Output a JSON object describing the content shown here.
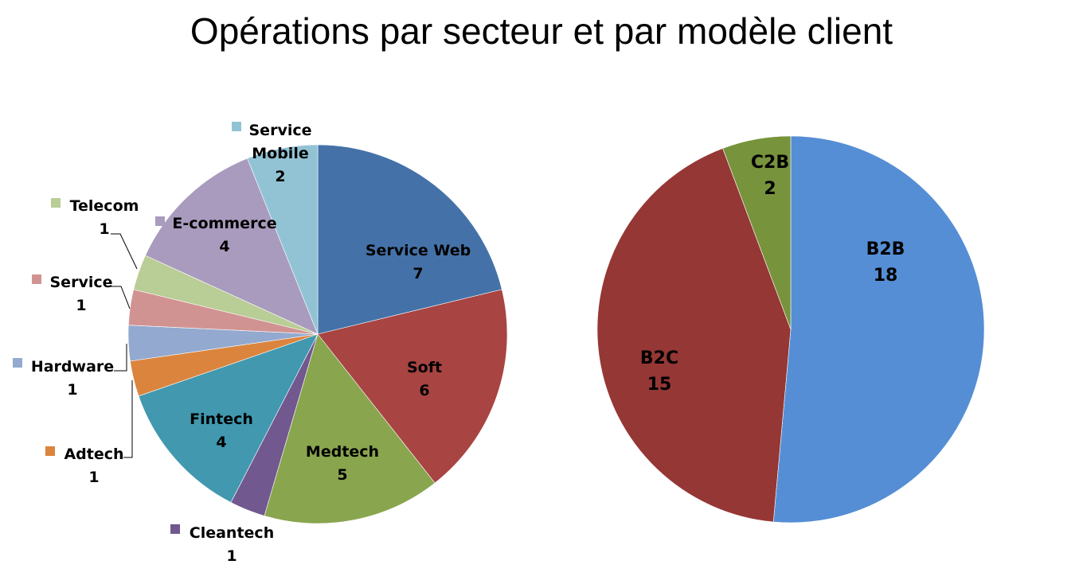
{
  "title": "Opérations par secteur et par modèle client",
  "chart_data": [
    {
      "type": "pie",
      "title": "",
      "categories": [
        "Service Web",
        "Soft",
        "Medtech",
        "Cleantech",
        "Fintech",
        "Adtech",
        "Hardware",
        "Service",
        "Telecom",
        "E-commerce",
        "Service Mobile"
      ],
      "values": [
        7,
        6,
        5,
        1,
        4,
        1,
        1,
        1,
        1,
        4,
        2
      ],
      "colors": [
        "#4472a8",
        "#a84442",
        "#89a54e",
        "#71588f",
        "#4198af",
        "#db843d",
        "#93a9cf",
        "#d19392",
        "#b9cd96",
        "#a99bbd",
        "#92c3d4"
      ],
      "labels": [
        {
          "name": "Service Web",
          "value": "7"
        },
        {
          "name": "Soft",
          "value": "6"
        },
        {
          "name": "Medtech",
          "value": "5"
        },
        {
          "name": "Cleantech",
          "value": "1"
        },
        {
          "name": "Fintech",
          "value": "4"
        },
        {
          "name": "Adtech",
          "value": "1"
        },
        {
          "name": "Hardware",
          "value": "1"
        },
        {
          "name": "Service",
          "value": "1"
        },
        {
          "name": "Telecom",
          "value": "1"
        },
        {
          "name": "E-commerce",
          "value": "4"
        },
        {
          "name": "Service Mobile",
          "value": "2"
        }
      ]
    },
    {
      "type": "pie",
      "title": "",
      "categories": [
        "B2B",
        "B2C",
        "C2B"
      ],
      "values": [
        18,
        15,
        2
      ],
      "colors": [
        "#558ed5",
        "#953735",
        "#77933c"
      ]
    }
  ]
}
